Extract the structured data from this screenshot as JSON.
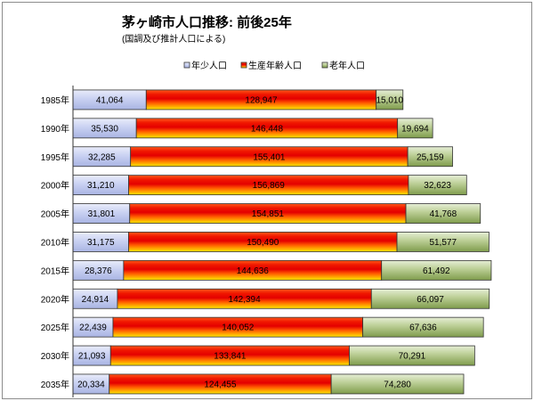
{
  "chart_data": {
    "type": "bar",
    "orientation": "horizontal",
    "stacked": true,
    "title": "茅ヶ崎市人口推移: 前後25年",
    "subtitle": "(国調及び推計人口による)",
    "xlabel": "",
    "ylabel": "",
    "xlim": [
      0,
      250000
    ],
    "grid": false,
    "legend": "top",
    "data_labels": true,
    "categories": [
      "1985年",
      "1990年",
      "1995年",
      "2000年",
      "2005年",
      "2010年",
      "2015年",
      "2020年",
      "2025年",
      "2030年",
      "2035年"
    ],
    "series": [
      {
        "name": "年少人口",
        "color": "#c3ccef",
        "values": [
          41064,
          35530,
          32285,
          31210,
          31801,
          31175,
          28376,
          24914,
          22439,
          21093,
          20334
        ]
      },
      {
        "name": "生産年齢人口",
        "color": "#ff4d00",
        "values": [
          128947,
          146448,
          155401,
          156869,
          154851,
          150490,
          144636,
          142394,
          140052,
          133841,
          124455
        ]
      },
      {
        "name": "老年人口",
        "color": "#9bb56a",
        "values": [
          15010,
          19694,
          25159,
          32623,
          41768,
          51577,
          61492,
          66097,
          67636,
          70291,
          74280
        ]
      }
    ]
  }
}
